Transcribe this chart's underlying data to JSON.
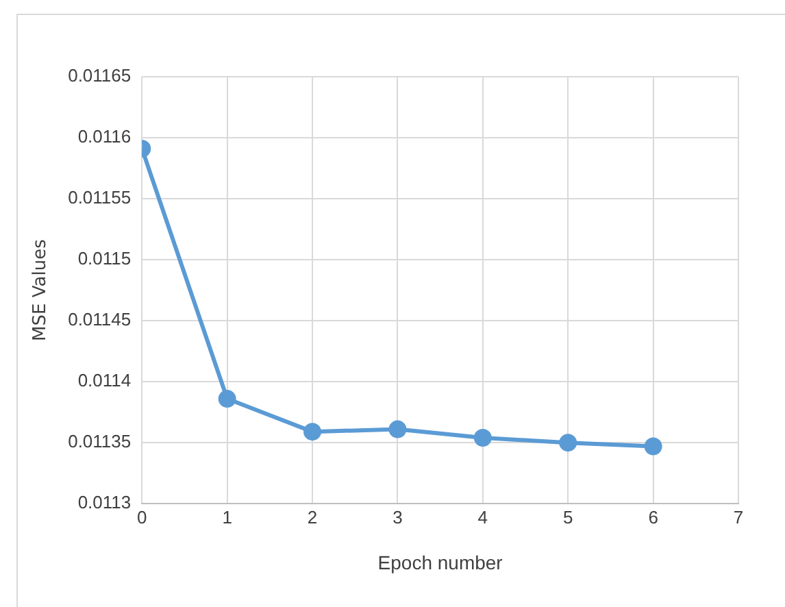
{
  "chart_data": {
    "type": "line",
    "xlabel": "Epoch number",
    "ylabel": "MSE Values",
    "x": [
      0,
      1,
      2,
      3,
      4,
      5,
      6
    ],
    "series": [
      {
        "color": "#5b9bd5",
        "values": [
          0.011591,
          0.011386,
          0.011359,
          0.011361,
          0.011354,
          0.01135,
          0.011347
        ]
      }
    ],
    "xlim": [
      0,
      7
    ],
    "xticks": [
      0,
      1,
      2,
      3,
      4,
      5,
      6,
      7
    ],
    "ylim": [
      0.0113,
      0.01165
    ],
    "yticks": [
      0.0113,
      0.01135,
      0.0114,
      0.01145,
      0.0115,
      0.01155,
      0.0116,
      0.01165
    ],
    "grid": true,
    "legend": false,
    "marker": "circle",
    "line_style": "solid"
  }
}
